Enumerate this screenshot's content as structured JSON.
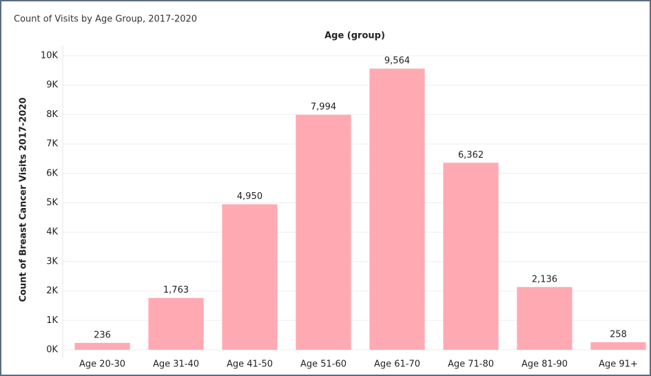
{
  "chart_data": {
    "type": "bar",
    "title": "Count of Visits by Age Group, 2017-2020",
    "x_label": "Age (group)",
    "y_label": "Count of Breast Cancer Visits 2017-2020",
    "categories": [
      "Age 20-30",
      "Age 31-40",
      "Age 41-50",
      "Age 51-60",
      "Age 61-70",
      "Age 71-80",
      "Age 81-90",
      "Age 91+"
    ],
    "values": [
      236,
      1763,
      4950,
      7994,
      9564,
      6362,
      2136,
      258
    ],
    "value_labels": [
      "236",
      "1,763",
      "4,950",
      "7,994",
      "9,564",
      "6,362",
      "2,136",
      "258"
    ],
    "color": "#ffaab3",
    "ylim": [
      0,
      10000
    ],
    "yticks": [
      {
        "value": 0,
        "label": "0K"
      },
      {
        "value": 1000,
        "label": "1K"
      },
      {
        "value": 2000,
        "label": "2K"
      },
      {
        "value": 3000,
        "label": "3K"
      },
      {
        "value": 4000,
        "label": "4K"
      },
      {
        "value": 5000,
        "label": "5K"
      },
      {
        "value": 6000,
        "label": "6K"
      },
      {
        "value": 7000,
        "label": "7K"
      },
      {
        "value": 8000,
        "label": "8K"
      },
      {
        "value": 9000,
        "label": "9K"
      },
      {
        "value": 10000,
        "label": "10K"
      }
    ],
    "grid": true
  }
}
